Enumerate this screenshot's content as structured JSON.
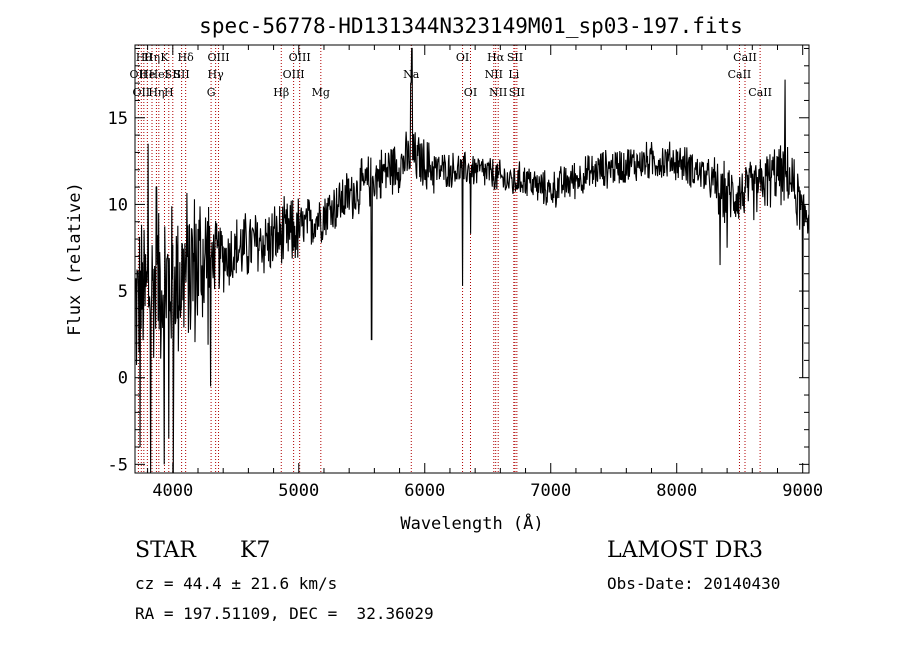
{
  "chart_data": {
    "type": "line",
    "title": "spec-56778-HD131344N323149M01_sp03-197.fits",
    "xlabel": "Wavelength (Å)",
    "ylabel": "Flux (relative)",
    "xlim": [
      3700,
      9050
    ],
    "ylim": [
      -5.5,
      19.2
    ],
    "x_ticks": [
      4000,
      5000,
      6000,
      7000,
      8000,
      9000
    ],
    "x_tick_labels": [
      "4000",
      "5000",
      "6000",
      "7000",
      "8000",
      "9000"
    ],
    "y_ticks": [
      -5,
      0,
      5,
      10,
      15
    ],
    "y_tick_labels": [
      "-5",
      "0",
      "5",
      "10",
      "15"
    ],
    "grid": false,
    "series": [
      {
        "name": "spectrum",
        "anchors": {
          "x": [
            3700,
            3800,
            3900,
            4000,
            4100,
            4200,
            4300,
            4400,
            4500,
            4600,
            4700,
            4800,
            4900,
            5000,
            5100,
            5200,
            5300,
            5400,
            5500,
            5600,
            5700,
            5800,
            5900,
            6000,
            6100,
            6200,
            6300,
            6400,
            6500,
            6600,
            6700,
            6800,
            6900,
            7000,
            7200,
            7400,
            7600,
            7800,
            8000,
            8200,
            8400,
            8600,
            8800,
            8900,
            9000
          ],
          "y": [
            4.0,
            5.0,
            5.5,
            5.5,
            6.0,
            6.5,
            7.0,
            7.0,
            7.3,
            7.6,
            7.8,
            8.0,
            8.2,
            8.5,
            9.0,
            9.5,
            10.0,
            10.5,
            11.0,
            11.5,
            12.0,
            12.3,
            12.8,
            12.3,
            12.0,
            12.0,
            12.0,
            12.0,
            11.8,
            11.5,
            11.3,
            11.5,
            11.0,
            10.8,
            11.5,
            12.0,
            12.3,
            12.5,
            12.5,
            11.8,
            10.5,
            10.8,
            11.8,
            11.5,
            9.5
          ]
        },
        "noise": [
          {
            "range": [
              3700,
              4300
            ],
            "amplitude": 5.5
          },
          {
            "range": [
              4300,
              5000
            ],
            "amplitude": 2.4
          },
          {
            "range": [
              5000,
              6100
            ],
            "amplitude": 1.8
          },
          {
            "range": [
              6100,
              7000
            ],
            "amplitude": 1.2
          },
          {
            "range": [
              7000,
              8300
            ],
            "amplitude": 1.3
          },
          {
            "range": [
              8300,
              9050
            ],
            "amplitude": 2.0
          }
        ],
        "features": [
          {
            "x": 3740,
            "y": -4.0
          },
          {
            "x": 3805,
            "y": 13.5
          },
          {
            "x": 3825,
            "y": -5.5
          },
          {
            "x": 3870,
            "y": 11.0
          },
          {
            "x": 3932,
            "y": -5.0
          },
          {
            "x": 3968,
            "y": -3.5
          },
          {
            "x": 4005,
            "y": -5.5
          },
          {
            "x": 4225,
            "y": 5.0
          },
          {
            "x": 4300,
            "y": -0.5
          },
          {
            "x": 5578,
            "y": 2.2
          },
          {
            "x": 5890,
            "y": 17.0
          },
          {
            "x": 5898,
            "y": 19.0
          },
          {
            "x": 6300,
            "y": 5.3
          },
          {
            "x": 6365,
            "y": 8.3
          },
          {
            "x": 8345,
            "y": 6.5
          },
          {
            "x": 8400,
            "y": 7.5
          },
          {
            "x": 8860,
            "y": 17.2
          },
          {
            "x": 9000,
            "y": 0.0
          }
        ]
      }
    ],
    "annotations": [
      {
        "x": 3727,
        "row": 1,
        "label": "OII"
      },
      {
        "x": 3750,
        "row": 2,
        "label": "OII"
      },
      {
        "x": 3770,
        "row": 0,
        "label": "Hθ"
      },
      {
        "x": 3798,
        "row": 1,
        "label": "He"
      },
      {
        "x": 3835,
        "row": 0,
        "label": "Hη"
      },
      {
        "x": 3870,
        "row": 2,
        "label": "Hη"
      },
      {
        "x": 3889,
        "row": 1,
        "label": "HeI"
      },
      {
        "x": 3934,
        "row": 0,
        "label": "K"
      },
      {
        "x": 3968,
        "row": 2,
        "label": "H"
      },
      {
        "x": 4000,
        "row": 1,
        "label": "SII"
      },
      {
        "x": 4070,
        "row": 1,
        "label": "SII"
      },
      {
        "x": 4102,
        "row": 0,
        "label": "Hδ"
      },
      {
        "x": 4304,
        "row": 2,
        "label": "G"
      },
      {
        "x": 4340,
        "row": 1,
        "label": "Hγ"
      },
      {
        "x": 4363,
        "row": 0,
        "label": "OIII"
      },
      {
        "x": 4861,
        "row": 2,
        "label": "Hβ"
      },
      {
        "x": 4959,
        "row": 1,
        "label": "OIII"
      },
      {
        "x": 5007,
        "row": 0,
        "label": "OIII"
      },
      {
        "x": 5175,
        "row": 2,
        "label": "Mg"
      },
      {
        "x": 5893,
        "row": 1,
        "label": "Na"
      },
      {
        "x": 6300,
        "row": 0,
        "label": "OI"
      },
      {
        "x": 6363,
        "row": 2,
        "label": "OI"
      },
      {
        "x": 6548,
        "row": 1,
        "label": "NII"
      },
      {
        "x": 6563,
        "row": 0,
        "label": "Hα"
      },
      {
        "x": 6583,
        "row": 2,
        "label": "NII"
      },
      {
        "x": 6707,
        "row": 1,
        "label": "Li"
      },
      {
        "x": 6716,
        "row": 0,
        "label": "SII"
      },
      {
        "x": 6731,
        "row": 2,
        "label": "SII"
      },
      {
        "x": 8498,
        "row": 1,
        "label": "CaII"
      },
      {
        "x": 8542,
        "row": 0,
        "label": "CaII"
      },
      {
        "x": 8662,
        "row": 2,
        "label": "CaII"
      }
    ]
  },
  "info": {
    "class": "STAR",
    "subclass": "K7",
    "survey": "LAMOST DR3",
    "cz": "cz = 44.4 ± 21.6 km/s",
    "obs_date": "Obs-Date: 20140430",
    "coords": "RA = 197.51109, DEC =  32.36029"
  }
}
